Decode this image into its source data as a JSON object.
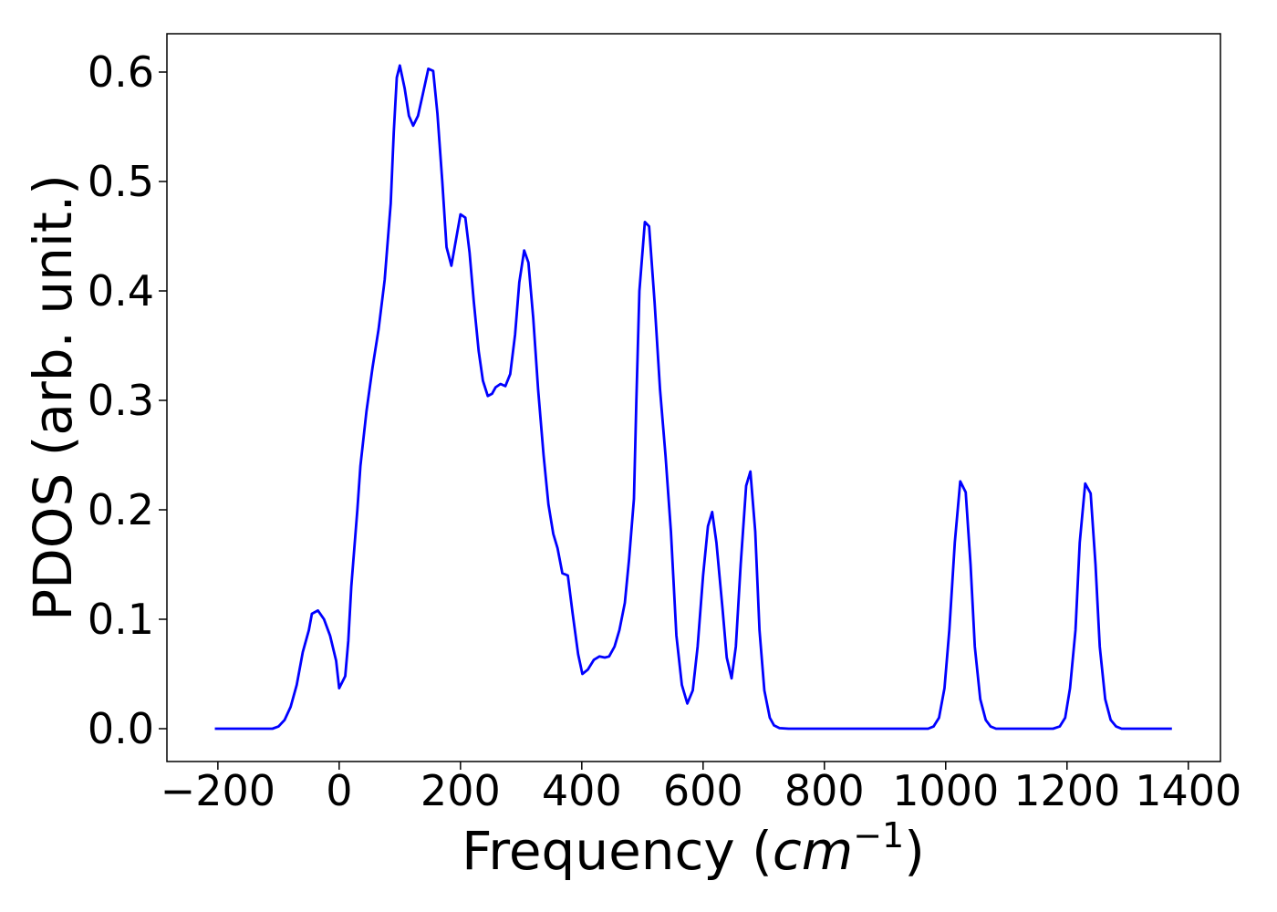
{
  "chart_data": {
    "type": "line",
    "xlabel": [
      "Frequency (",
      "cm",
      "−1",
      ")"
    ],
    "ylabel": "PDOS (arb. unit.)",
    "color": "#0000ff",
    "xlim": [
      -284,
      1453
    ],
    "ylim": [
      -0.03,
      0.635
    ],
    "xticks": [
      {
        "value": -200,
        "label": "−200"
      },
      0,
      200,
      400,
      600,
      800,
      1000,
      1200,
      1400
    ],
    "yticks": [
      {
        "value": 0,
        "label": "0.0"
      },
      0.1,
      0.2,
      0.3,
      0.4,
      0.5,
      0.6
    ],
    "x": [
      -205,
      -110,
      -100,
      -90,
      -80,
      -70,
      -60,
      -50,
      -45,
      -35,
      -25,
      -15,
      -5,
      0,
      10,
      15,
      20,
      30,
      35,
      45,
      55,
      65,
      75,
      85,
      90,
      95,
      100,
      108,
      115,
      122,
      130,
      138,
      147,
      155,
      162,
      170,
      177,
      185,
      192,
      200,
      208,
      215,
      222,
      230,
      237,
      245,
      252,
      258,
      266,
      274,
      282,
      290,
      297,
      305,
      312,
      320,
      328,
      337,
      345,
      353,
      360,
      368,
      377,
      385,
      394,
      401,
      410,
      420,
      429,
      438,
      445,
      454,
      462,
      471,
      478,
      486,
      490,
      495,
      504,
      511,
      520,
      529,
      538,
      547,
      556,
      565,
      574,
      583,
      591,
      600,
      608,
      615,
      622,
      632,
      639,
      647,
      654,
      662,
      671,
      678,
      686,
      693,
      701,
      710,
      717,
      726,
      741,
      971,
      980,
      989,
      998,
      1006,
      1015,
      1024,
      1033,
      1041,
      1048,
      1057,
      1066,
      1074,
      1083,
      1177,
      1188,
      1197,
      1205,
      1214,
      1221,
      1230,
      1239,
      1247,
      1254,
      1263,
      1272,
      1281,
      1290,
      1373
    ],
    "values": [
      0,
      0,
      0.002,
      0.008,
      0.02,
      0.04,
      0.07,
      0.09,
      0.105,
      0.108,
      0.1,
      0.085,
      0.062,
      0.037,
      0.048,
      0.08,
      0.13,
      0.2,
      0.24,
      0.29,
      0.33,
      0.365,
      0.41,
      0.48,
      0.545,
      0.595,
      0.606,
      0.585,
      0.56,
      0.551,
      0.56,
      0.58,
      0.603,
      0.601,
      0.562,
      0.5,
      0.44,
      0.423,
      0.445,
      0.47,
      0.467,
      0.435,
      0.39,
      0.345,
      0.318,
      0.304,
      0.306,
      0.312,
      0.315,
      0.313,
      0.324,
      0.36,
      0.408,
      0.437,
      0.426,
      0.375,
      0.31,
      0.25,
      0.205,
      0.178,
      0.165,
      0.142,
      0.14,
      0.105,
      0.068,
      0.05,
      0.054,
      0.063,
      0.066,
      0.065,
      0.066,
      0.075,
      0.09,
      0.115,
      0.155,
      0.21,
      0.3,
      0.4,
      0.463,
      0.459,
      0.39,
      0.31,
      0.25,
      0.18,
      0.085,
      0.04,
      0.023,
      0.035,
      0.075,
      0.14,
      0.185,
      0.198,
      0.17,
      0.11,
      0.065,
      0.046,
      0.075,
      0.15,
      0.222,
      0.235,
      0.18,
      0.09,
      0.035,
      0.01,
      0.003,
      0.0005,
      0,
      0,
      0.002,
      0.01,
      0.037,
      0.09,
      0.17,
      0.226,
      0.216,
      0.15,
      0.075,
      0.027,
      0.008,
      0.002,
      0,
      0,
      0.002,
      0.01,
      0.037,
      0.09,
      0.17,
      0.224,
      0.215,
      0.15,
      0.075,
      0.027,
      0.008,
      0.002,
      0,
      0
    ]
  }
}
